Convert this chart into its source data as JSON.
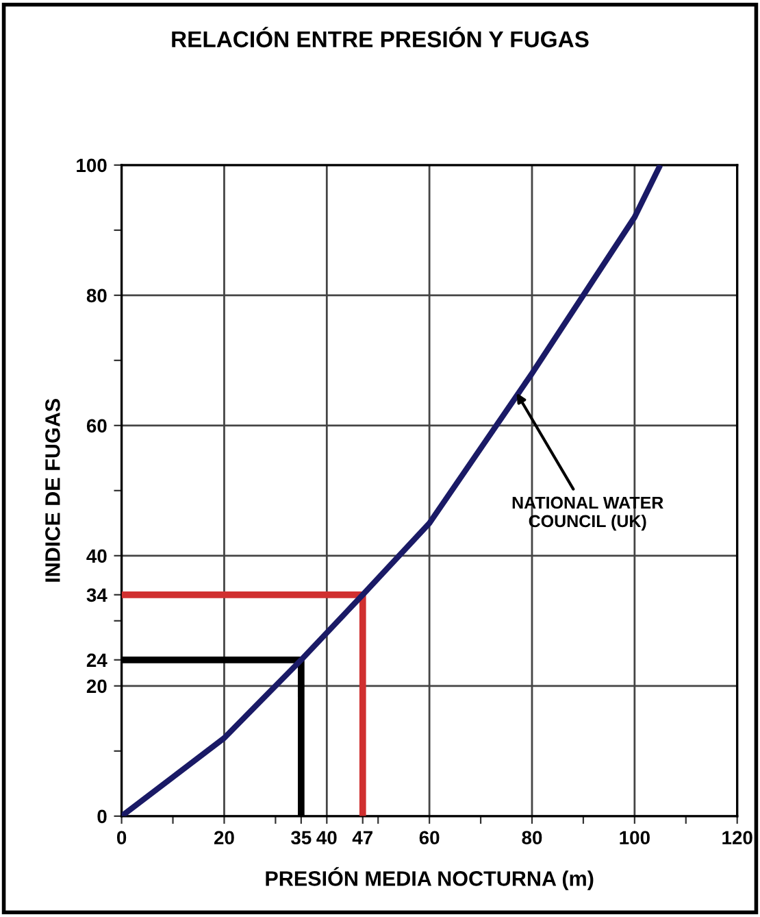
{
  "chart_data": {
    "type": "line",
    "title": "RELACIÓN ENTRE PRESIÓN Y FUGAS",
    "xlabel": "PRESIÓN MEDIA NOCTURNA (m)",
    "ylabel": "INDICE DE FUGAS",
    "series": [
      {
        "x": [
          0,
          20,
          35,
          47,
          60,
          80,
          100,
          105
        ],
        "values": [
          0,
          12,
          24,
          34,
          45,
          68,
          92,
          100
        ],
        "color": "#1a1a66"
      },
      {
        "x": [
          0,
          47,
          47
        ],
        "values": [
          34,
          34,
          0
        ],
        "color": "#d03030"
      },
      {
        "x": [
          0,
          35,
          35
        ],
        "values": [
          24,
          24,
          0
        ],
        "color": "#000000"
      }
    ],
    "xlim": [
      0,
      120
    ],
    "ylim": [
      0,
      100
    ],
    "xticks": [
      0,
      {
        "value": 10,
        "label": null
      },
      20,
      {
        "value": 30,
        "label": null
      },
      {
        "value": 35,
        "label": "35"
      },
      40,
      {
        "value": 47,
        "label": "47"
      },
      {
        "value": 50,
        "label": null
      },
      60,
      {
        "value": 70,
        "label": null
      },
      80,
      {
        "value": 90,
        "label": null
      },
      100,
      {
        "value": 110,
        "label": null
      },
      120
    ],
    "yticks": [
      0,
      {
        "value": 10,
        "label": null
      },
      20,
      {
        "value": 24,
        "label": "24"
      },
      {
        "value": 30,
        "label": null
      },
      {
        "value": 34,
        "label": "34"
      },
      40,
      {
        "value": 50,
        "label": null
      },
      60,
      {
        "value": 70,
        "label": null
      },
      80,
      {
        "value": 90,
        "label": null
      },
      100
    ],
    "grid": true,
    "legend": false,
    "marker": "none",
    "line_style": "solid",
    "annotations": [
      {
        "text": "NATIONAL WATER\nCOUNCIL (UK)",
        "x": 77,
        "y": 65
      }
    ]
  }
}
